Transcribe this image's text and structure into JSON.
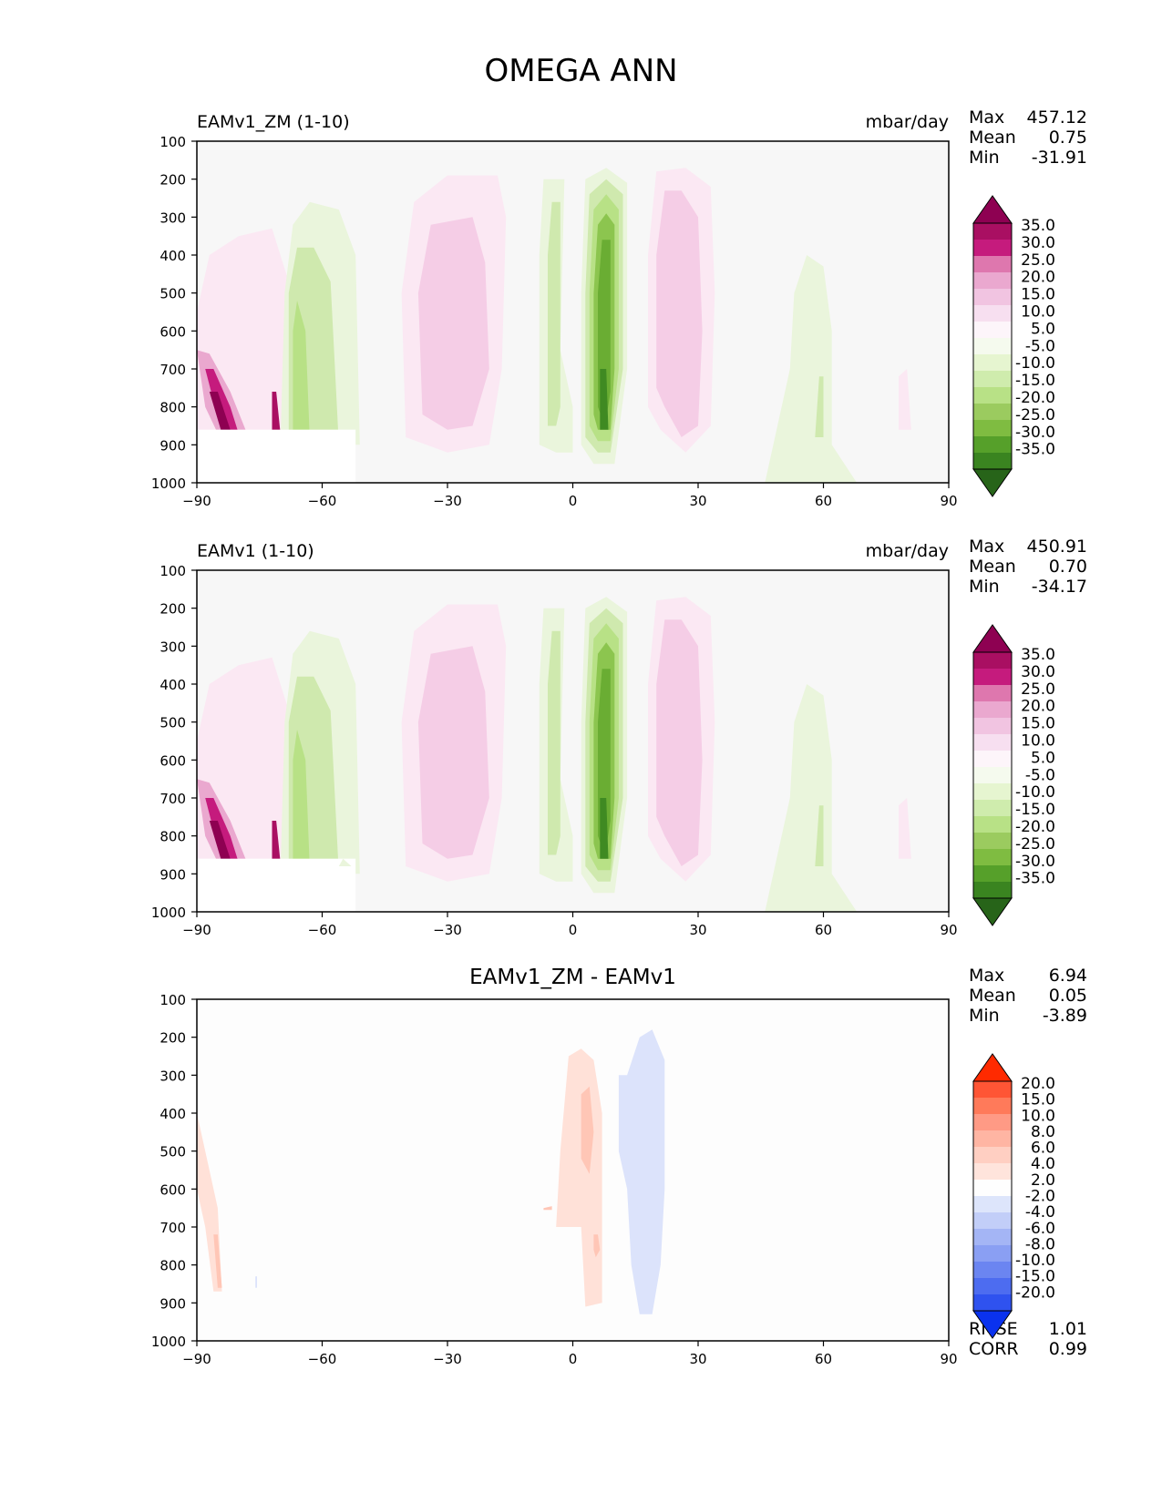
{
  "figure_title": "OMEGA ANN",
  "chart_data": [
    {
      "type": "contour",
      "title": "EAMv1_ZM (1-10)",
      "units": "mbar/day",
      "x_ticks": [
        -90,
        -60,
        -30,
        0,
        30,
        60,
        90
      ],
      "y_ticks": [
        100,
        200,
        300,
        400,
        500,
        600,
        700,
        800,
        900,
        1000
      ],
      "xlim": [
        -90,
        90
      ],
      "ylim": [
        1000,
        100
      ],
      "stats": {
        "max_label": "Max",
        "max": "457.12",
        "mean_label": "Mean",
        "mean": "0.75",
        "min_label": "Min",
        "min": "-31.91"
      },
      "colorbar_levels": [
        "35.0",
        "30.0",
        "25.0",
        "20.0",
        "15.0",
        "10.0",
        "5.0",
        "-5.0",
        "-10.0",
        "-15.0",
        "-20.0",
        "-25.0",
        "-30.0",
        "-35.0"
      ],
      "colorbar_colors": [
        "#8e0152",
        "#a90f62",
        "#c51b7d",
        "#de77ae",
        "#eaa8cf",
        "#f1c4e1",
        "#f7dff0",
        "#fdf5fa",
        "#f5faee",
        "#e6f5d0",
        "#cfecad",
        "#b8e186",
        "#9bcb5f",
        "#7fbc41",
        "#56a02a",
        "#3a8420",
        "#276419"
      ]
    },
    {
      "type": "contour",
      "title": "EAMv1 (1-10)",
      "units": "mbar/day",
      "x_ticks": [
        -90,
        -60,
        -30,
        0,
        30,
        60,
        90
      ],
      "y_ticks": [
        100,
        200,
        300,
        400,
        500,
        600,
        700,
        800,
        900,
        1000
      ],
      "xlim": [
        -90,
        90
      ],
      "ylim": [
        1000,
        100
      ],
      "stats": {
        "max_label": "Max",
        "max": "450.91",
        "mean_label": "Mean",
        "mean": "0.70",
        "min_label": "Min",
        "min": "-34.17"
      },
      "colorbar_levels": [
        "35.0",
        "30.0",
        "25.0",
        "20.0",
        "15.0",
        "10.0",
        "5.0",
        "-5.0",
        "-10.0",
        "-15.0",
        "-20.0",
        "-25.0",
        "-30.0",
        "-35.0"
      ],
      "colorbar_colors": [
        "#8e0152",
        "#a90f62",
        "#c51b7d",
        "#de77ae",
        "#eaa8cf",
        "#f1c4e1",
        "#f7dff0",
        "#fdf5fa",
        "#f5faee",
        "#e6f5d0",
        "#cfecad",
        "#b8e186",
        "#9bcb5f",
        "#7fbc41",
        "#56a02a",
        "#3a8420",
        "#276419"
      ]
    },
    {
      "type": "contour",
      "title": "EAMv1_ZM - EAMv1",
      "units": "",
      "x_ticks": [
        -90,
        -60,
        -30,
        0,
        30,
        60,
        90
      ],
      "y_ticks": [
        100,
        200,
        300,
        400,
        500,
        600,
        700,
        800,
        900,
        1000
      ],
      "xlim": [
        -90,
        90
      ],
      "ylim": [
        1000,
        100
      ],
      "stats": {
        "max_label": "Max",
        "max": "6.94",
        "mean_label": "Mean",
        "mean": "0.05",
        "min_label": "Min",
        "min": "-3.89"
      },
      "extra_stats": {
        "rmse_label": "RMSE",
        "rmse": "1.01",
        "corr_label": "CORR",
        "corr": "0.99"
      },
      "colorbar_levels": [
        "20.0",
        "15.0",
        "10.0",
        "8.0",
        "6.0",
        "4.0",
        "2.0",
        "-2.0",
        "-4.0",
        "-6.0",
        "-8.0",
        "-10.0",
        "-15.0",
        "-20.0"
      ],
      "colorbar_colors": [
        "#ff2a00",
        "#ff5535",
        "#ff7a5a",
        "#ff9a85",
        "#ffb5a3",
        "#ffcfc2",
        "#ffe4dc",
        "#fefefe",
        "#dde5fb",
        "#c2cef8",
        "#a4b5f5",
        "#8a9ff3",
        "#6b85f1",
        "#4d6cf0",
        "#2f52ef",
        "#0a32ee"
      ]
    }
  ]
}
